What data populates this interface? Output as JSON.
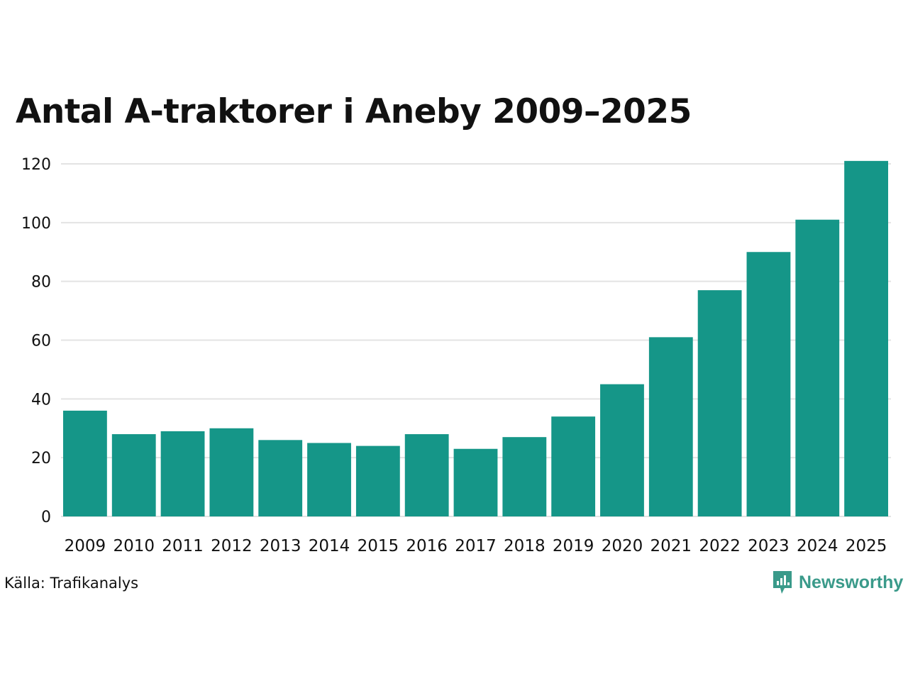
{
  "chart_data": {
    "type": "bar",
    "title": "Antal A-traktorer i Aneby 2009–2025",
    "categories": [
      "2009",
      "2010",
      "2011",
      "2012",
      "2013",
      "2014",
      "2015",
      "2016",
      "2017",
      "2018",
      "2019",
      "2020",
      "2021",
      "2022",
      "2023",
      "2024",
      "2025"
    ],
    "values": [
      36,
      28,
      29,
      30,
      26,
      25,
      24,
      28,
      23,
      27,
      34,
      45,
      61,
      77,
      90,
      101,
      121
    ],
    "xlabel": "",
    "ylabel": "",
    "ylim": [
      0,
      125
    ],
    "yticks": [
      0,
      20,
      40,
      60,
      80,
      100,
      120
    ],
    "grid": true,
    "bar_color": "#159688",
    "grid_color": "#e3e3e3"
  },
  "footer": {
    "source": "Källa: Trafikanalys",
    "brand": "Newsworthy",
    "brand_icon": "newsworthy-logo-icon",
    "brand_color": "#3a9a8a"
  }
}
